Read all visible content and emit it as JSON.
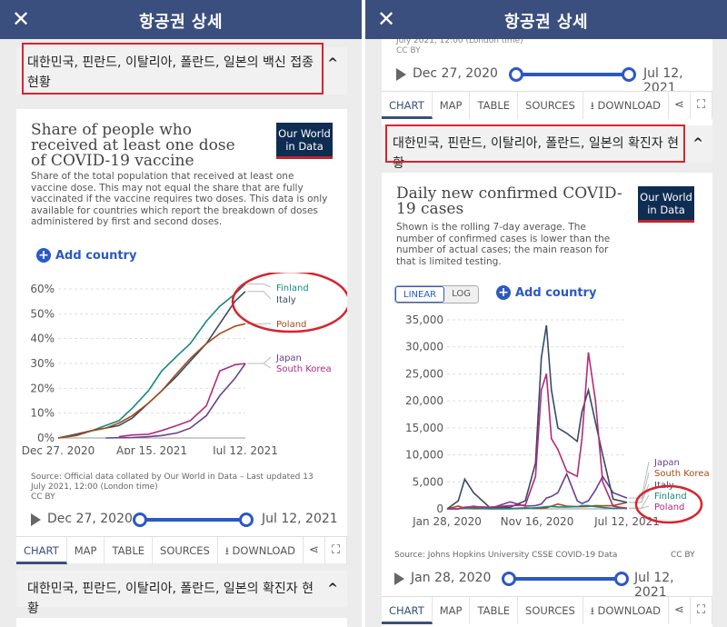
{
  "app": {
    "bar_title": "항공권 상세",
    "close_glyph": "✕"
  },
  "left": {
    "accordion_top": "대한민국, 핀란드, 이탈리아, 폴란드, 일본의 백신 접종 현황",
    "accordion_bottom": "대한민국, 핀란드, 이탈리아, 폴란드, 일본의 확진자 현황",
    "card": {
      "title": "Share of people who received at least one dose of COVID-19 vaccine",
      "subtitle": "Share of the total population that received at least one vaccine dose. This may not equal the share that are fully vaccinated if the vaccine requires two doses. This data is only available for countries which report the breakdown of doses administered by first and second doses.",
      "logo_line1": "Our World",
      "logo_line2": "in Data",
      "add_country": "Add country",
      "source_line1": "Source: Official data collated by Our World in Data – Last updated 13",
      "source_line2": "July 2021, 12:00 (London time)",
      "license": "CC BY",
      "timeline_start": "Dec 27, 2020",
      "timeline_end": "Jul 12, 2021"
    },
    "tabs": [
      "CHART",
      "MAP",
      "TABLE",
      "SOURCES",
      "DOWNLOAD"
    ]
  },
  "right": {
    "header_fragment_line1": "July 2021, 12:00 (London time)",
    "header_fragment_line2": "CC BY",
    "top_timeline_start": "Dec 27, 2020",
    "top_timeline_end": "Jul 12, 2021",
    "top_tabs": [
      "CHART",
      "MAP",
      "TABLE",
      "SOURCES",
      "DOWNLOAD"
    ],
    "accordion": "대한민국, 핀란드, 이탈리아, 폴란드, 일본의 확진자 현황",
    "card": {
      "title": "Daily new confirmed COVID-19 cases",
      "subtitle": "Shown is the rolling 7-day average. The number of confirmed cases is lower than the number of actual cases; the main reason for that is limited testing.",
      "logo_line1": "Our World",
      "logo_line2": "in Data",
      "toggle_linear": "LINEAR",
      "toggle_log": "LOG",
      "add_country": "Add country",
      "source": "Source: Johns Hopkins University CSSE COVID-19 Data",
      "license": "CC BY",
      "timeline_start": "Jan 28, 2020",
      "timeline_end": "Jul 12, 2021"
    },
    "tabs": [
      "CHART",
      "MAP",
      "TABLE",
      "SOURCES",
      "DOWNLOAD"
    ]
  },
  "colors": {
    "header": "#3a4f7e",
    "finland": "#17897e",
    "italy": "#384a65",
    "poland": "#a54a17",
    "japan": "#6c3e92",
    "south_korea": "#b02c7c",
    "annotation": "#d9232e"
  },
  "chart_data": [
    {
      "type": "line",
      "title": "Share of people who received at least one dose of COVID-19 vaccine",
      "x_labels": [
        "Dec 27, 2020",
        "Apr 15, 2021",
        "Jul 12, 2021"
      ],
      "y_ticks": [
        "0%",
        "10%",
        "20%",
        "30%",
        "40%",
        "50%",
        "60%"
      ],
      "ylim": [
        0,
        60
      ],
      "x": [
        "2020-12-27",
        "2021-01-15",
        "2021-02-01",
        "2021-02-15",
        "2021-03-01",
        "2021-03-15",
        "2021-04-01",
        "2021-04-15",
        "2021-05-01",
        "2021-05-15",
        "2021-06-01",
        "2021-06-15",
        "2021-07-01",
        "2021-07-12"
      ],
      "series": [
        {
          "name": "Finland",
          "color": "#17897e",
          "values": [
            0,
            1.5,
            3,
            5,
            7,
            12,
            19,
            27,
            33,
            38,
            47,
            53,
            58,
            62
          ]
        },
        {
          "name": "Italy",
          "color": "#384a65",
          "values": [
            0,
            1.5,
            3,
            4,
            5,
            8,
            14,
            19,
            25,
            31,
            38,
            46,
            55,
            59
          ]
        },
        {
          "name": "Poland",
          "color": "#a54a17",
          "values": [
            0,
            1,
            3,
            4,
            6,
            9,
            14,
            19,
            26,
            32,
            38,
            42,
            45,
            46
          ]
        },
        {
          "name": "Japan",
          "color": "#6c3e92",
          "values": [
            null,
            null,
            null,
            0,
            0.1,
            0.2,
            0.5,
            1,
            2,
            4,
            9,
            17,
            24,
            30
          ]
        },
        {
          "name": "South Korea",
          "color": "#b02c7c",
          "values": [
            null,
            null,
            null,
            null,
            0.5,
            1.2,
            1.5,
            3,
            5,
            7,
            13,
            27,
            29.5,
            30
          ]
        }
      ],
      "grid": true,
      "legend": "right (labels at line ends)"
    },
    {
      "type": "line",
      "title": "Daily new confirmed COVID-19 cases",
      "x_labels": [
        "Jan 28, 2020",
        "Nov 16, 2020",
        "Jul 12, 2021"
      ],
      "y_ticks": [
        "0",
        "5,000",
        "10,000",
        "15,000",
        "20,000",
        "25,000",
        "30,000",
        "35,000"
      ],
      "ylim": [
        0,
        35000
      ],
      "scale": "linear",
      "x": [
        "2020-01-28",
        "2020-03-01",
        "2020-03-20",
        "2020-04-15",
        "2020-06-01",
        "2020-08-01",
        "2020-09-15",
        "2020-10-15",
        "2020-11-01",
        "2020-11-16",
        "2020-12-01",
        "2020-12-20",
        "2021-01-15",
        "2021-02-15",
        "2021-03-01",
        "2021-03-20",
        "2021-04-10",
        "2021-05-01",
        "2021-06-01",
        "2021-07-12"
      ],
      "series": [
        {
          "name": "Japan",
          "color": "#6c3e92",
          "values": [
            0,
            10,
            200,
            500,
            40,
            1300,
            500,
            600,
            900,
            2000,
            2300,
            3000,
            6500,
            1500,
            1000,
            1500,
            3500,
            6000,
            3000,
            2000
          ]
        },
        {
          "name": "South Korea",
          "color": "#a54a17",
          "values": [
            0,
            500,
            120,
            30,
            40,
            50,
            200,
            80,
            100,
            200,
            500,
            900,
            500,
            400,
            400,
            450,
            600,
            550,
            600,
            1200
          ]
        },
        {
          "name": "Italy",
          "color": "#384a65",
          "values": [
            0,
            1500,
            5500,
            3000,
            300,
            300,
            1500,
            8500,
            28000,
            34000,
            22000,
            15000,
            14000,
            12500,
            18000,
            22000,
            16000,
            10000,
            1800,
            1200
          ]
        },
        {
          "name": "Finland",
          "color": "#17897e",
          "values": [
            0,
            20,
            100,
            150,
            20,
            20,
            80,
            200,
            300,
            400,
            450,
            350,
            350,
            400,
            600,
            600,
            400,
            250,
            100,
            150
          ]
        },
        {
          "name": "Poland",
          "color": "#b02c7c",
          "values": [
            0,
            20,
            300,
            400,
            300,
            600,
            700,
            6000,
            22000,
            25000,
            13000,
            11000,
            7000,
            6000,
            13000,
            29000,
            20000,
            5000,
            500,
            100
          ]
        }
      ],
      "grid": true,
      "legend": "right (labels at line ends)"
    }
  ]
}
